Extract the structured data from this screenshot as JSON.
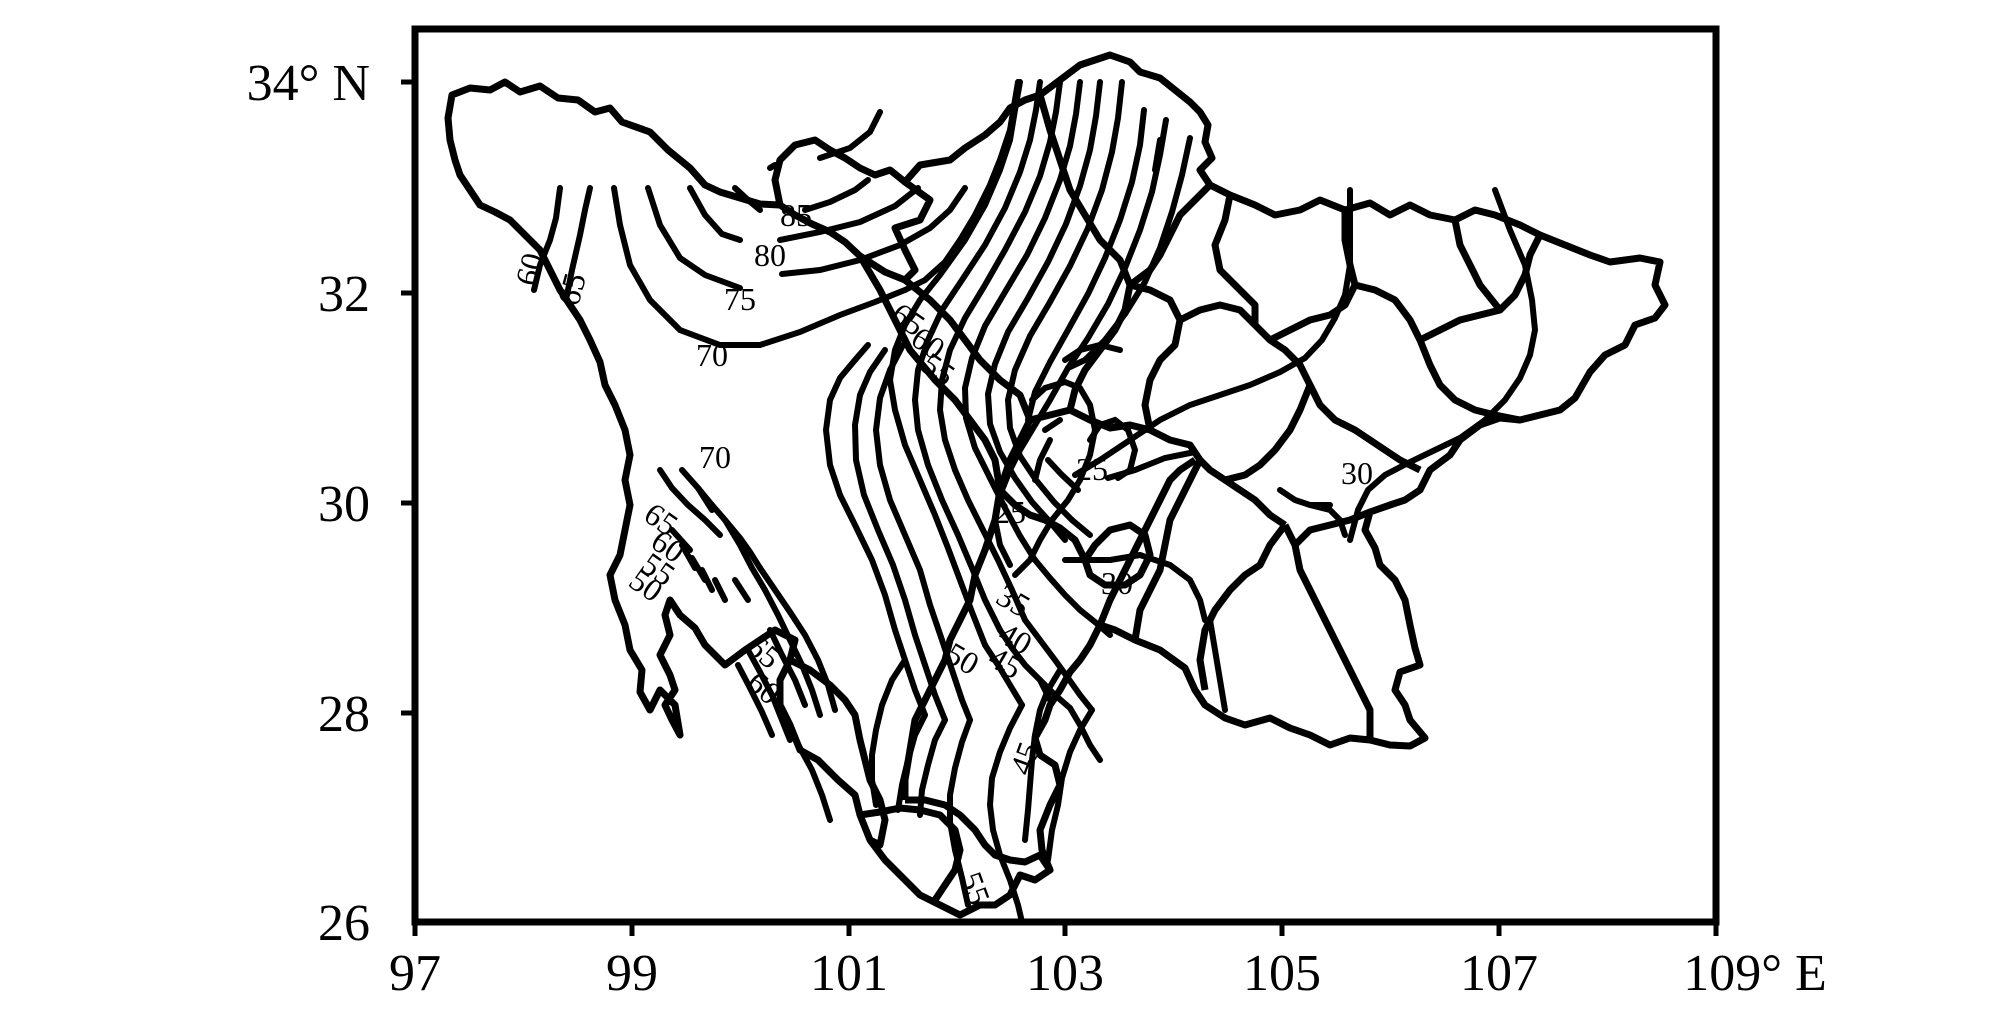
{
  "map": {
    "x_ticks": [
      "97",
      "99",
      "101",
      "103",
      "105",
      "107",
      "109° E"
    ],
    "y_ticks": [
      "34° N",
      "32",
      "30",
      "28",
      "26"
    ],
    "xlim": [
      97,
      109
    ],
    "ylim": [
      26,
      34.5
    ],
    "contour_labels": [
      "85",
      "80",
      "75",
      "70",
      "60",
      "65",
      "65",
      "60",
      "55",
      "70",
      "25",
      "25",
      "30",
      "30",
      "35",
      "40",
      "45",
      "50",
      "65",
      "60",
      "55",
      "50",
      "65",
      "60",
      "45",
      "55"
    ],
    "colors": {
      "line": "#000000",
      "background": "#ffffff"
    }
  }
}
